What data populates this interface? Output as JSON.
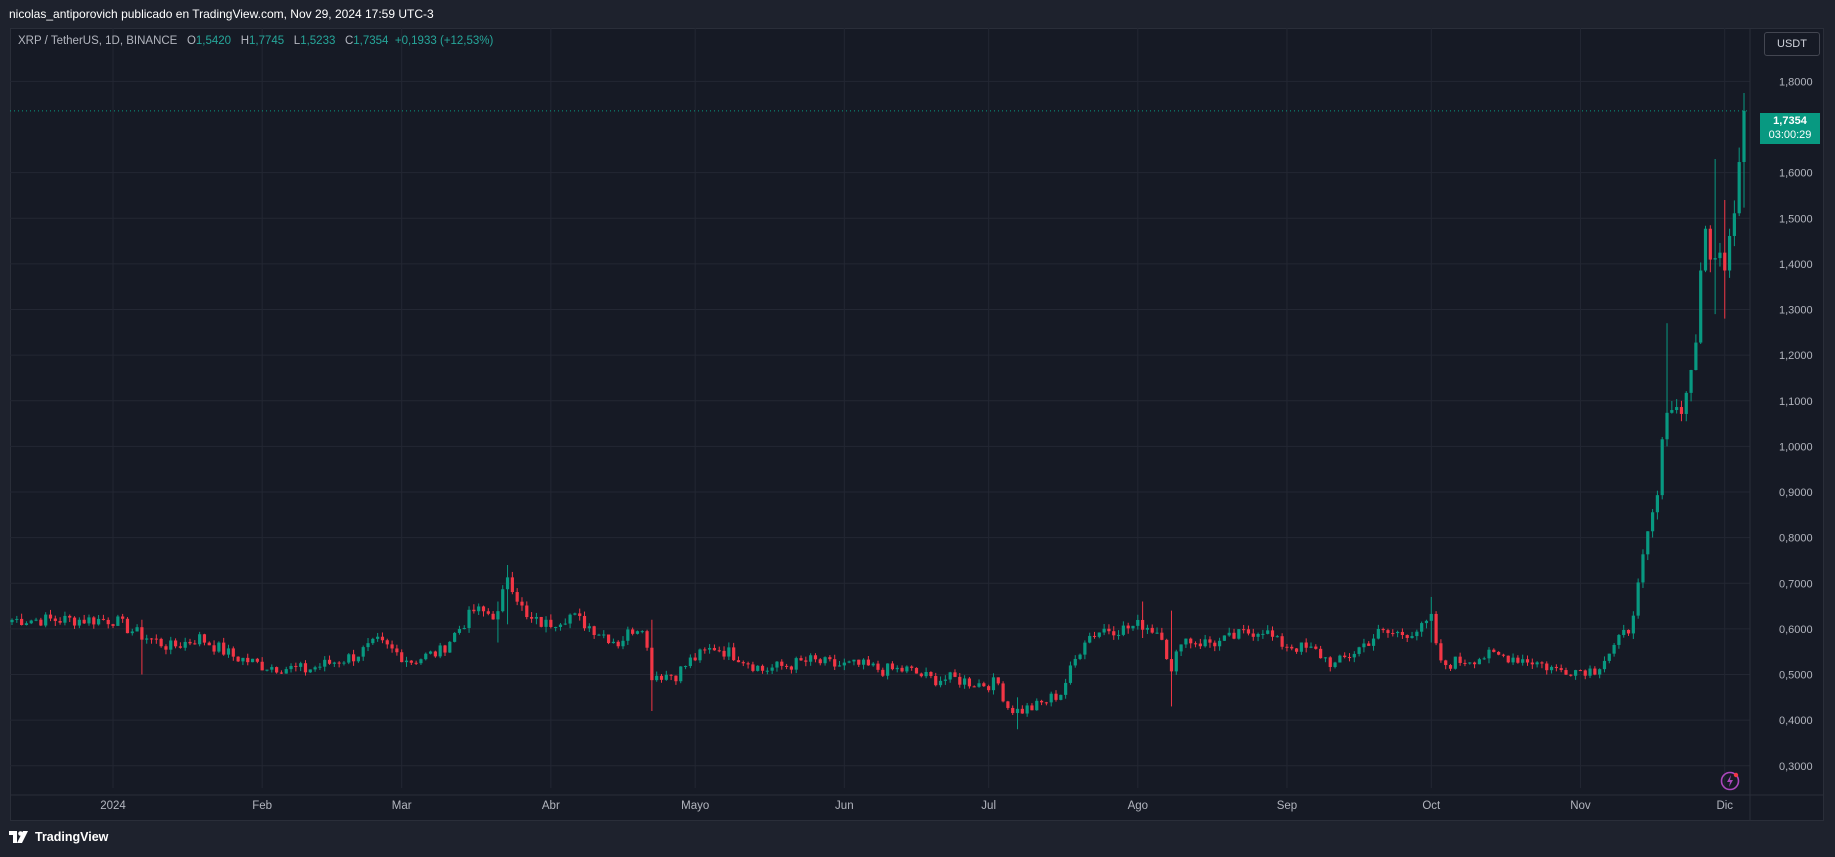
{
  "header": {
    "publisher_line": "nicolas_antiporovich publicado en TradingView.com, Nov 29, 2024 17:59 UTC-3"
  },
  "legend": {
    "symbol": "XRP / TetherUS, 1D, BINANCE",
    "o_label": "O",
    "o_value": "1,5420",
    "h_label": "H",
    "h_value": "1,7745",
    "l_label": "L",
    "l_value": "1,5233",
    "c_label": "C",
    "c_value": "1,7354",
    "change": "+0,1933 (+12,53%)"
  },
  "currency_button": "USDT",
  "last_price": {
    "price": "1,7354",
    "countdown": "03:00:29"
  },
  "footer": {
    "brand": "TradingView"
  },
  "colors": {
    "up": "#089981",
    "down": "#f23645",
    "background": "#161a25",
    "grid": "#232733",
    "text": "#b2b5be",
    "accent": "#ab47bc"
  },
  "icons": {
    "logo": "tradingview-logo-icon",
    "bolt": "lightning-bolt-icon"
  },
  "chart_data": {
    "type": "candlestick",
    "symbol": "XRP / TetherUS",
    "interval": "1D",
    "exchange": "BINANCE",
    "y_ticks": [
      "1,8000",
      "1,6000",
      "1,5000",
      "1,4000",
      "1,3000",
      "1,2000",
      "1,1000",
      "1,0000",
      "0,9000",
      "0,8000",
      "0,7000",
      "0,6000",
      "0,5000",
      "0,4000",
      "0,3000"
    ],
    "y_tick_values": [
      1.8,
      1.6,
      1.5,
      1.4,
      1.3,
      1.2,
      1.1,
      1.0,
      0.9,
      0.8,
      0.7,
      0.6,
      0.5,
      0.4,
      0.3
    ],
    "ylim": [
      0.26,
      1.86
    ],
    "x_labels": [
      "2024",
      "Feb",
      "Mar",
      "Abr",
      "Mayo",
      "Jun",
      "Jul",
      "Ago",
      "Sep",
      "Oct",
      "Nov",
      "Dic"
    ],
    "x_label_days": [
      0,
      31,
      60,
      91,
      121,
      152,
      182,
      213,
      244,
      274,
      305,
      335
    ],
    "first_day": "2023-12-12",
    "last_price": 1.7354,
    "grid": true,
    "anchors": [
      [
        -20,
        0.62
      ],
      [
        -10,
        0.62
      ],
      [
        0,
        0.62
      ],
      [
        5,
        0.59
      ],
      [
        12,
        0.56
      ],
      [
        18,
        0.58
      ],
      [
        25,
        0.54
      ],
      [
        31,
        0.52
      ],
      [
        40,
        0.51
      ],
      [
        50,
        0.54
      ],
      [
        55,
        0.57
      ],
      [
        62,
        0.53
      ],
      [
        68,
        0.55
      ],
      [
        75,
        0.64
      ],
      [
        80,
        0.63
      ],
      [
        82,
        0.72
      ],
      [
        86,
        0.62
      ],
      [
        90,
        0.61
      ],
      [
        95,
        0.63
      ],
      [
        100,
        0.6
      ],
      [
        105,
        0.57
      ],
      [
        108,
        0.6
      ],
      [
        110,
        0.61
      ],
      [
        112,
        0.5
      ],
      [
        117,
        0.5
      ],
      [
        120,
        0.53
      ],
      [
        125,
        0.56
      ],
      [
        130,
        0.54
      ],
      [
        135,
        0.51
      ],
      [
        140,
        0.52
      ],
      [
        145,
        0.53
      ],
      [
        150,
        0.52
      ],
      [
        155,
        0.52
      ],
      [
        160,
        0.51
      ],
      [
        165,
        0.51
      ],
      [
        170,
        0.49
      ],
      [
        175,
        0.49
      ],
      [
        180,
        0.48
      ],
      [
        184,
        0.48
      ],
      [
        186,
        0.43
      ],
      [
        188,
        0.42
      ],
      [
        192,
        0.43
      ],
      [
        197,
        0.46
      ],
      [
        202,
        0.58
      ],
      [
        206,
        0.6
      ],
      [
        210,
        0.6
      ],
      [
        214,
        0.61
      ],
      [
        218,
        0.59
      ],
      [
        220,
        0.5
      ],
      [
        222,
        0.58
      ],
      [
        226,
        0.57
      ],
      [
        230,
        0.57
      ],
      [
        235,
        0.59
      ],
      [
        239,
        0.6
      ],
      [
        242,
        0.57
      ],
      [
        246,
        0.56
      ],
      [
        250,
        0.55
      ],
      [
        254,
        0.52
      ],
      [
        258,
        0.55
      ],
      [
        263,
        0.59
      ],
      [
        268,
        0.59
      ],
      [
        272,
        0.6
      ],
      [
        274,
        0.62
      ],
      [
        276,
        0.52
      ],
      [
        280,
        0.53
      ],
      [
        285,
        0.54
      ],
      [
        290,
        0.54
      ],
      [
        295,
        0.53
      ],
      [
        300,
        0.51
      ],
      [
        305,
        0.51
      ],
      [
        308,
        0.51
      ],
      [
        312,
        0.56
      ],
      [
        315,
        0.6
      ],
      [
        317,
        0.69
      ],
      [
        319,
        0.8
      ],
      [
        321,
        0.89
      ],
      [
        323,
        1.1
      ],
      [
        325,
        1.08
      ],
      [
        327,
        1.11
      ],
      [
        329,
        1.24
      ],
      [
        331,
        1.47
      ],
      [
        333,
        1.4
      ],
      [
        335,
        1.42
      ],
      [
        337,
        1.54
      ],
      [
        339,
        1.735
      ]
    ],
    "spikes": [
      {
        "day": 82,
        "high": 0.74,
        "low": 0.61
      },
      {
        "day": 112,
        "high": 0.62,
        "low": 0.42
      },
      {
        "day": 80,
        "high": 0.66,
        "low": 0.57
      },
      {
        "day": 220,
        "high": 0.64,
        "low": 0.43
      },
      {
        "day": 214,
        "high": 0.66,
        "low": 0.58
      },
      {
        "day": 188,
        "high": 0.45,
        "low": 0.38
      },
      {
        "day": 274,
        "high": 0.67,
        "low": 0.57
      },
      {
        "day": 333,
        "high": 1.63,
        "low": 1.29
      },
      {
        "day": 335,
        "high": 1.54,
        "low": 1.28
      },
      {
        "day": 339,
        "high": 1.7745,
        "low": 1.5233
      },
      {
        "day": 323,
        "high": 1.27,
        "low": 1.0
      },
      {
        "day": 6,
        "high": 0.62,
        "low": 0.5
      }
    ],
    "x_day_start": -21,
    "x_day_end": 339
  }
}
